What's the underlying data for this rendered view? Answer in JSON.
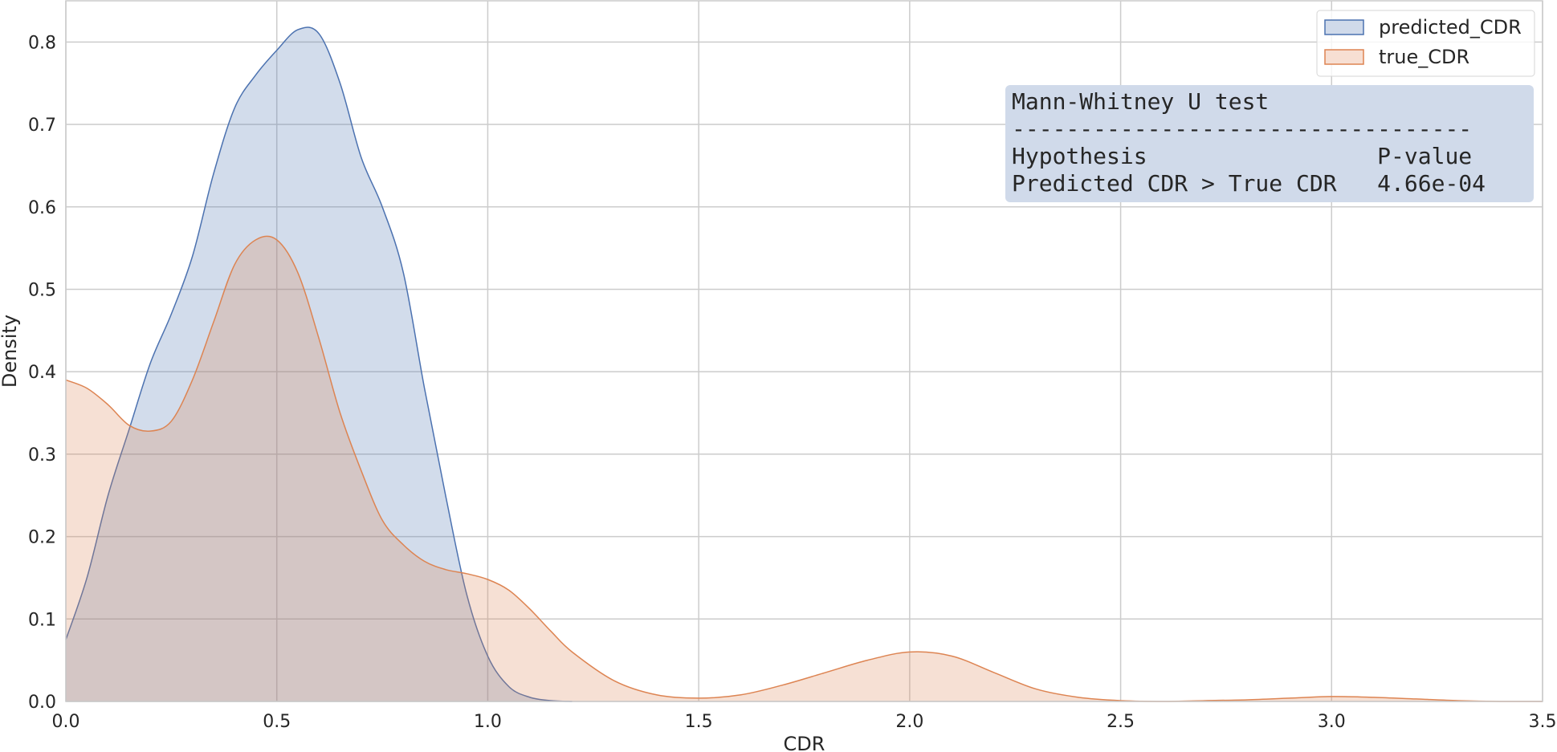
{
  "chart_data": {
    "type": "area",
    "xlabel": "CDR",
    "ylabel": "Density",
    "xlim": [
      0.0,
      3.5
    ],
    "ylim": [
      0.0,
      0.85
    ],
    "x_ticks": [
      "0.0",
      "0.5",
      "1.0",
      "1.5",
      "2.0",
      "2.5",
      "3.0",
      "3.5"
    ],
    "y_ticks": [
      "0.0",
      "0.1",
      "0.2",
      "0.3",
      "0.4",
      "0.5",
      "0.6",
      "0.7",
      "0.8"
    ],
    "grid": true,
    "legend_position": "top-right",
    "series": [
      {
        "name": "predicted_CDR",
        "color": "#4c72b0",
        "fill": "#d0daea",
        "x": [
          0.0,
          0.05,
          0.1,
          0.15,
          0.2,
          0.25,
          0.3,
          0.35,
          0.4,
          0.45,
          0.5,
          0.55,
          0.6,
          0.65,
          0.7,
          0.75,
          0.8,
          0.85,
          0.9,
          0.95,
          1.0,
          1.05,
          1.1,
          1.15,
          1.2
        ],
        "y": [
          0.075,
          0.15,
          0.25,
          0.33,
          0.41,
          0.47,
          0.54,
          0.64,
          0.72,
          0.76,
          0.79,
          0.815,
          0.81,
          0.75,
          0.66,
          0.6,
          0.52,
          0.38,
          0.25,
          0.13,
          0.055,
          0.018,
          0.005,
          0.001,
          0.0
        ]
      },
      {
        "name": "true_CDR",
        "color": "#dd8452",
        "fill": "#f7dfd3",
        "x": [
          0.0,
          0.05,
          0.1,
          0.15,
          0.2,
          0.25,
          0.3,
          0.35,
          0.4,
          0.45,
          0.5,
          0.55,
          0.6,
          0.65,
          0.7,
          0.75,
          0.8,
          0.85,
          0.9,
          0.95,
          1.0,
          1.05,
          1.1,
          1.15,
          1.2,
          1.3,
          1.4,
          1.5,
          1.6,
          1.7,
          1.8,
          1.9,
          2.0,
          2.1,
          2.2,
          2.3,
          2.4,
          2.5,
          2.6,
          2.7,
          2.8,
          2.9,
          3.0,
          3.1,
          3.2,
          3.3,
          3.4,
          3.5
        ],
        "y": [
          0.39,
          0.38,
          0.36,
          0.335,
          0.328,
          0.34,
          0.39,
          0.46,
          0.53,
          0.56,
          0.56,
          0.52,
          0.44,
          0.35,
          0.28,
          0.22,
          0.19,
          0.17,
          0.16,
          0.155,
          0.148,
          0.135,
          0.112,
          0.085,
          0.06,
          0.025,
          0.008,
          0.004,
          0.008,
          0.02,
          0.035,
          0.05,
          0.06,
          0.055,
          0.035,
          0.015,
          0.005,
          0.001,
          0.0,
          0.001,
          0.002,
          0.004,
          0.006,
          0.005,
          0.003,
          0.001,
          0.0,
          0.0
        ]
      }
    ],
    "annotation": {
      "lines": [
        "Mann-Whitney U test",
        "----------------------------------",
        "Hypothesis                 P-value",
        "Predicted CDR > True CDR   4.66e-04"
      ],
      "background": "#d0daea"
    }
  }
}
